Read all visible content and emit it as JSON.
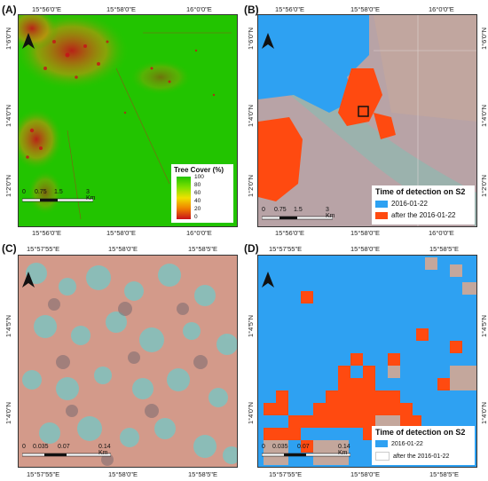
{
  "panels": [
    {
      "id": "A",
      "label": "(A)",
      "top_ticks": [
        "15°56'0\"E",
        "15°58'0\"E",
        "16°0'0\"E"
      ],
      "bottom_ticks": [
        "15°56'0\"E",
        "15°58'0\"E",
        "16°0'0\"E"
      ],
      "left_ticks": [
        "1°6'0\"N",
        "1°4'0\"N",
        "1°2'0\"N"
      ],
      "right_ticks": [],
      "scale": [
        "0",
        "0.75",
        "1.5",
        "3 Km"
      ],
      "legend": {
        "title": "Tree Cover (%)",
        "values": [
          "100",
          "80",
          "60",
          "40",
          "20",
          "0"
        ]
      }
    },
    {
      "id": "B",
      "label": "(B)",
      "top_ticks": [
        "15°56'0\"E",
        "15°58'0\"E",
        "16°0'0\"E"
      ],
      "bottom_ticks": [
        "15°56'0\"E",
        "15°58'0\"E",
        "16°0'0\"E"
      ],
      "left_ticks": [
        "1°6'0\"N",
        "1°4'0\"N",
        "1°2'0\"N"
      ],
      "right_ticks": [
        "1°6'0\"N",
        "1°4'0\"N",
        "1°2'0\"N"
      ],
      "scale": [
        "0",
        "0.75",
        "1.5",
        "3 Km"
      ],
      "legend": {
        "title": "Time of detection on S2",
        "items": [
          "2016-01-22",
          "after the 2016-01-22"
        ]
      }
    },
    {
      "id": "C",
      "label": "(C)",
      "top_ticks": [
        "15°57'55\"E",
        "15°58'0\"E",
        "15°58'5\"E"
      ],
      "bottom_ticks": [
        "15°57'55\"E",
        "15°58'0\"E",
        "15°58'5\"E"
      ],
      "left_ticks": [
        "1°4'5\"N",
        "1°4'0\"N"
      ],
      "right_ticks": [],
      "scale": [
        "0",
        "0.035",
        "0.07",
        "0.14 Km"
      ]
    },
    {
      "id": "D",
      "label": "(D)",
      "top_ticks": [
        "15°57'55\"E",
        "15°58'0\"E",
        "15°58'5\"E"
      ],
      "bottom_ticks": [
        "15°57'55\"E",
        "15°58'0\"E",
        "15°58'5\"E"
      ],
      "left_ticks": [
        "1°4'5\"N",
        "1°4'0\"N"
      ],
      "right_ticks": [
        "1°4'5\"N",
        "1°4'0\"N"
      ],
      "scale": [
        "0",
        "0.035",
        "0.07",
        "0.14 Km"
      ],
      "legend": {
        "title": "Time of detection on S2",
        "items": [
          "2016-01-22",
          "after the 2016-01-22"
        ]
      }
    }
  ],
  "north_label": "N",
  "colors": {
    "treecover_high": "#22c400",
    "treecover_low": "#c8101a",
    "detected_2016": "#2ea1f2",
    "detected_after": "#ff4a10",
    "false_color_pink": "#d39a8a",
    "false_color_cyan": "#7fc3c0"
  }
}
